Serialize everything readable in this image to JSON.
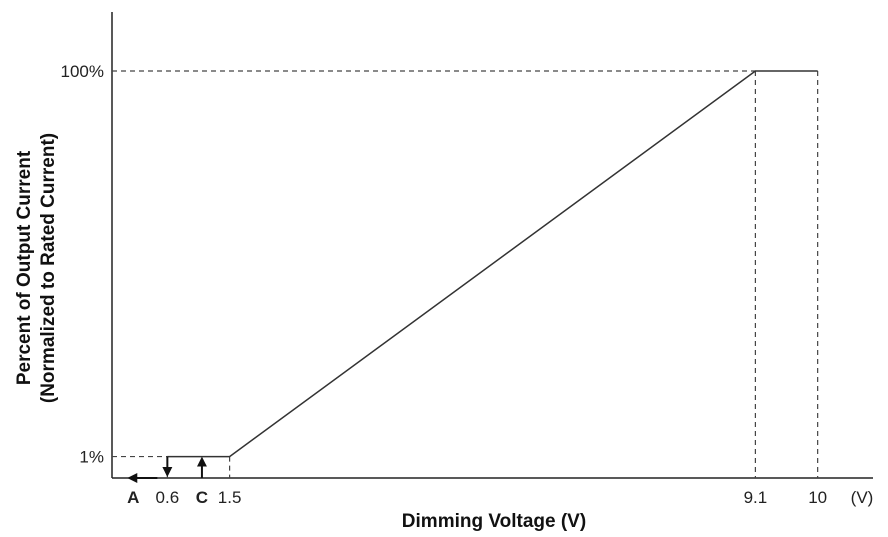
{
  "chart_data": {
    "type": "line",
    "xlabel": "Dimming Voltage (V)",
    "ylabel_line1": "Percent of Output Current",
    "ylabel_line2": "(Normalized to Rated Current)",
    "x_unit": "(V)",
    "x_ticks": [
      "0.6",
      "1.5",
      "9.1",
      "10"
    ],
    "y_ticks": [
      "1%",
      "100%"
    ],
    "annotations": [
      {
        "label": "A",
        "direction": "left",
        "x": 0.05
      },
      {
        "label": "C",
        "direction": "up",
        "x": 1.1
      }
    ],
    "series": [
      {
        "x": [
          0.6,
          1.5,
          9.1,
          10
        ],
        "y": [
          1,
          1,
          100,
          100
        ]
      }
    ],
    "xlim": [
      -0.2,
      10.8
    ],
    "ylim": [
      -4.5,
      100
    ],
    "grid": false
  }
}
